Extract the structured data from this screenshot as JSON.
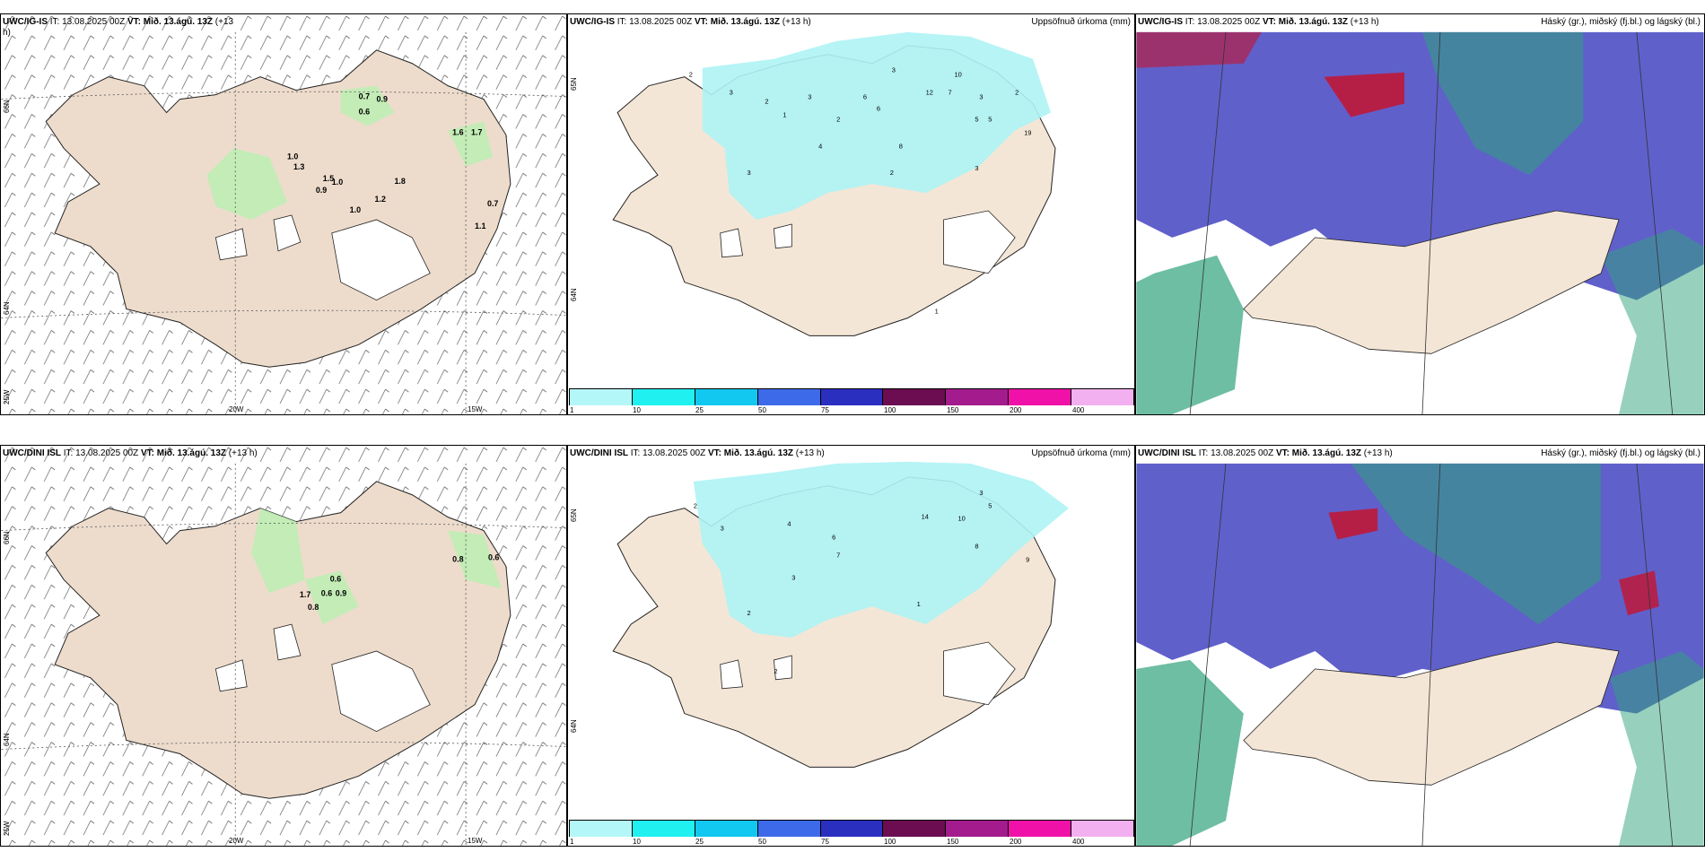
{
  "colors": {
    "land": "#f4e6d6",
    "land_wind": "#eddccc",
    "green_light": "#b8f0b0",
    "green_dark": "#2e8b3a",
    "cyan": "#aef3f5",
    "blue_cloud": "#5757c8",
    "red_cloud": "#c4142f",
    "green_cloud": "#2fa37c"
  },
  "icons": [
    "wind-barb-icon",
    "precip-colorbar-icon"
  ],
  "row1": {
    "wind_panel": {
      "title_model": "UWC/IG-IS",
      "title_it": "IT: 13.08.2025 00Z",
      "title_vt_label": "VT: Mið. 13.ágú. 13Z",
      "title_lead": "(+13",
      "title_lead2": "h)",
      "lat_labels": [
        "66N",
        "64N",
        "25W"
      ],
      "lon_labels": [
        "20W",
        "15W"
      ],
      "values": [
        "0.7",
        "0.9",
        "0.6",
        "1.6",
        "1.7",
        "1.0",
        "1.3",
        "1.5",
        "1.0",
        "0.9",
        "1.8",
        "1.2",
        "1.0",
        "0.7",
        "1.1"
      ]
    },
    "precip_panel": {
      "title_model": "UWC/IG-IS",
      "title_it": "IT: 13.08.2025 00Z",
      "title_vt_label": "VT: Mið. 13.ágú. 13Z",
      "title_lead": "(+13 h)",
      "title_right": "Uppsöfnuð úrkoma (mm)",
      "lat_labels": [
        "65N",
        "64N"
      ],
      "values": [
        "2",
        "3",
        "2",
        "1",
        "3",
        "2",
        "3",
        "10",
        "3",
        "5",
        "2",
        "6",
        "6",
        "12",
        "7",
        "5",
        "19",
        "4",
        "8",
        "3",
        "2",
        "3",
        "1"
      ]
    },
    "cloud_panel": {
      "title_model": "UWC/IG-IS",
      "title_it": "IT: 13.08.2025 00Z",
      "title_vt_label": "VT: Mið. 13.ágú. 13Z",
      "title_lead": "(+13 h)",
      "title_right": "Háský (gr.), miðský (fj.bl.) og lágský (bl.)"
    }
  },
  "row2": {
    "wind_panel": {
      "title_model": "UWC/DINI ISL",
      "title_it": "IT: 13.08.2025 00Z",
      "title_vt_label": "VT: Mið. 13.ágú. 13Z",
      "title_lead": "(+13 h)",
      "lat_labels": [
        "66N",
        "64N",
        "25W"
      ],
      "lon_labels": [
        "20W",
        "15W"
      ],
      "values": [
        "0.6",
        "0.8",
        "0.6",
        "1.7",
        "0.6",
        "0.8",
        "0.9"
      ]
    },
    "precip_panel": {
      "title_model": "UWC/DINI ISL",
      "title_it": "IT: 13.08.2025 00Z",
      "title_vt_label": "VT: Mið. 13.ágú. 13Z",
      "title_lead": "(+13 h)",
      "title_right": "Uppsöfnuð úrkoma (mm)",
      "lat_labels": [
        "65N",
        "64N"
      ],
      "values": [
        "2",
        "3",
        "4",
        "14",
        "10",
        "3",
        "5",
        "6",
        "9",
        "7",
        "2",
        "8",
        "3",
        "1",
        "2"
      ]
    },
    "cloud_panel": {
      "title_model": "UWC/DINI ISL",
      "title_it": "IT: 13.08.2025 00Z",
      "title_vt_label": "VT: Mið. 13.ágú. 13Z",
      "title_lead": "(+13 h)",
      "title_right": "Háský (gr.), miðský (fj.bl.) og lágský (bl.)"
    }
  },
  "colorbar": {
    "ticks": [
      "1",
      "10",
      "25",
      "50",
      "75",
      "100",
      "150",
      "200",
      "400"
    ],
    "colors": [
      "#b4f7f8",
      "#20f0f0",
      "#12c8f0",
      "#3d6ae8",
      "#2b2fc0",
      "#6c0d52",
      "#a31b8c",
      "#f012a8",
      "#f3b0f0"
    ]
  }
}
